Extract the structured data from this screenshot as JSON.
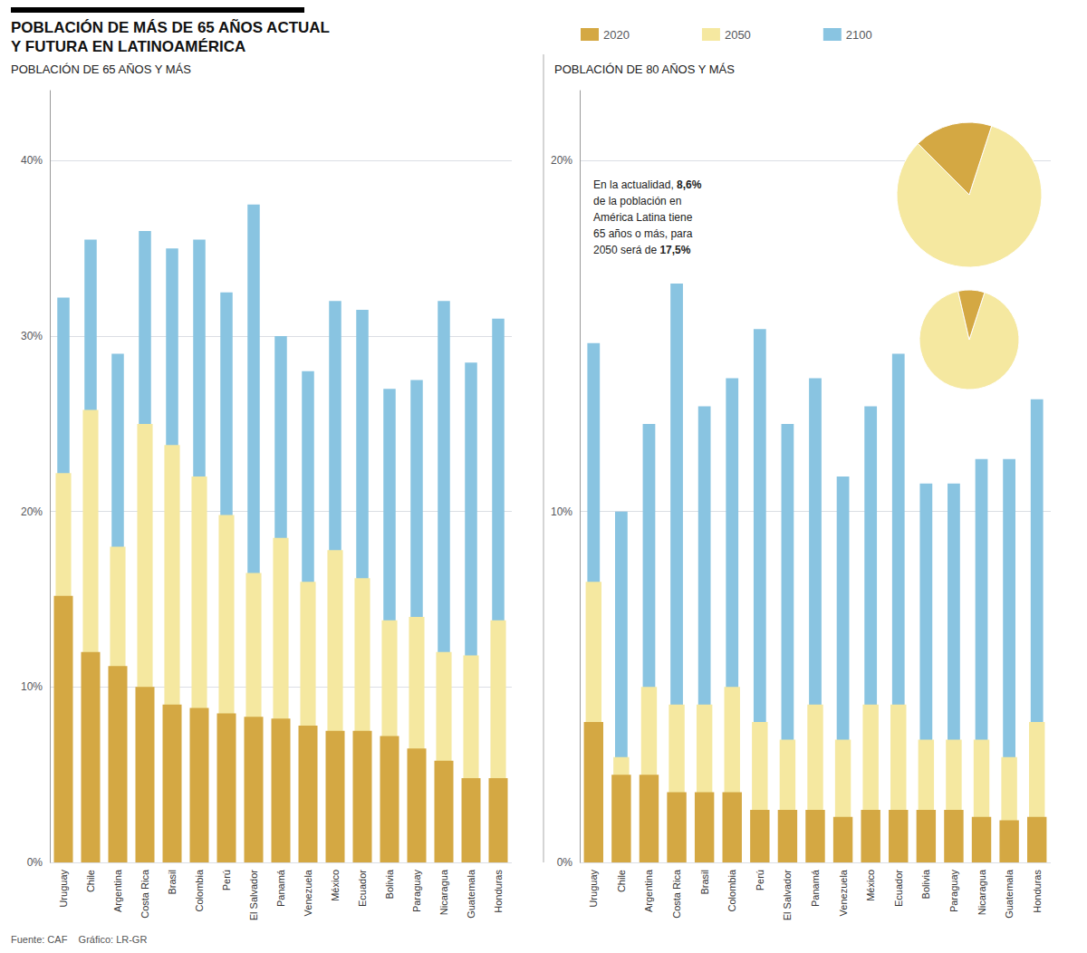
{
  "chart_data": [
    {
      "type": "bar",
      "title": "POBLACIÓN DE MÁS DE 65 AÑOS ACTUAL\nY FUTURA EN LATINOAMÉRICA",
      "subtitle": "POBLACIÓN DE 65 AÑOS Y MÁS",
      "categories": [
        "Uruguay",
        "Chile",
        "Argentina",
        "Costa Rica",
        "Brasil",
        "Colombia",
        "Perú",
        "El Salvador",
        "Panamá",
        "Venezuela",
        "México",
        "Ecuador",
        "Bolivia",
        "Paraguay",
        "Nicaragua",
        "Guatemala",
        "Honduras"
      ],
      "series": [
        {
          "name": "2020",
          "color": "#D4A843",
          "values": [
            15.2,
            12.0,
            11.2,
            10.0,
            9.0,
            8.8,
            8.5,
            8.3,
            8.2,
            7.8,
            7.5,
            7.5,
            7.2,
            6.5,
            5.8,
            4.8,
            4.8
          ]
        },
        {
          "name": "2050",
          "color": "#F5E8A0",
          "values": [
            22.2,
            25.8,
            18.0,
            25.0,
            23.8,
            22.0,
            19.8,
            16.5,
            18.5,
            16.0,
            17.8,
            16.2,
            13.8,
            14.0,
            12.0,
            11.8,
            13.8
          ]
        },
        {
          "name": "2100",
          "color": "#89C4E1",
          "values": [
            32.2,
            35.5,
            29.0,
            36.0,
            35.0,
            35.5,
            32.5,
            37.5,
            30.0,
            28.0,
            32.0,
            31.5,
            27.0,
            27.5,
            32.0,
            28.5,
            31.0
          ]
        }
      ],
      "ylim": [
        0,
        44
      ],
      "yticks": [
        {
          "value": 0,
          "label": "0%"
        },
        {
          "value": 10,
          "label": "10%"
        },
        {
          "value": 20,
          "label": "20%"
        },
        {
          "value": 30,
          "label": "30%"
        },
        {
          "value": 40,
          "label": "40%"
        }
      ],
      "grid": true,
      "legend": "top",
      "annotations": [
        "Fuente: CAF    Gráfico: LR-GR"
      ]
    },
    {
      "type": "bar",
      "subtitle": "POBLACIÓN DE 80 AÑOS Y MÁS",
      "categories": [
        "Uruguay",
        "Chile",
        "Argentina",
        "Costa Rica",
        "Brasil",
        "Colombia",
        "Perú",
        "El Salvador",
        "Panamá",
        "Venezuela",
        "México",
        "Ecuador",
        "Bolivia",
        "Paraguay",
        "Nicaragua",
        "Guatemala",
        "Honduras"
      ],
      "series": [
        {
          "name": "2020",
          "color": "#D4A843",
          "values": [
            4.0,
            2.5,
            2.5,
            2.0,
            2.0,
            2.0,
            1.5,
            1.5,
            1.5,
            1.3,
            1.5,
            1.5,
            1.5,
            1.5,
            1.3,
            1.2,
            1.3
          ]
        },
        {
          "name": "2050",
          "color": "#F5E8A0",
          "values": [
            8.0,
            3.0,
            5.0,
            4.5,
            4.5,
            5.0,
            4.0,
            3.5,
            4.5,
            3.5,
            4.5,
            4.5,
            3.5,
            3.5,
            3.5,
            3.0,
            4.0
          ]
        },
        {
          "name": "2100",
          "color": "#89C4E1",
          "values": [
            14.8,
            10.0,
            12.5,
            16.5,
            13.0,
            13.8,
            15.2,
            12.5,
            13.8,
            11.0,
            13.0,
            14.5,
            10.8,
            10.8,
            11.5,
            11.5,
            13.2
          ]
        }
      ],
      "ylim": [
        0,
        22
      ],
      "yticks": [
        {
          "value": 0,
          "label": "0%"
        },
        {
          "value": 10,
          "label": "10%"
        },
        {
          "value": 20,
          "label": "20%"
        }
      ],
      "grid": true,
      "annotations": [
        "En la actualidad, 8,6%",
        "de la población en",
        "América Latina tiene",
        "65 años o más, para",
        "2050 será de 17,5%"
      ]
    },
    {
      "type": "pie",
      "values": [
        82.5,
        17.5
      ],
      "colors": [
        "#F5E8A0",
        "#D4A843"
      ]
    },
    {
      "type": "pie",
      "values": [
        91.4,
        8.6
      ],
      "colors": [
        "#F5E8A0",
        "#D4A843"
      ]
    }
  ]
}
